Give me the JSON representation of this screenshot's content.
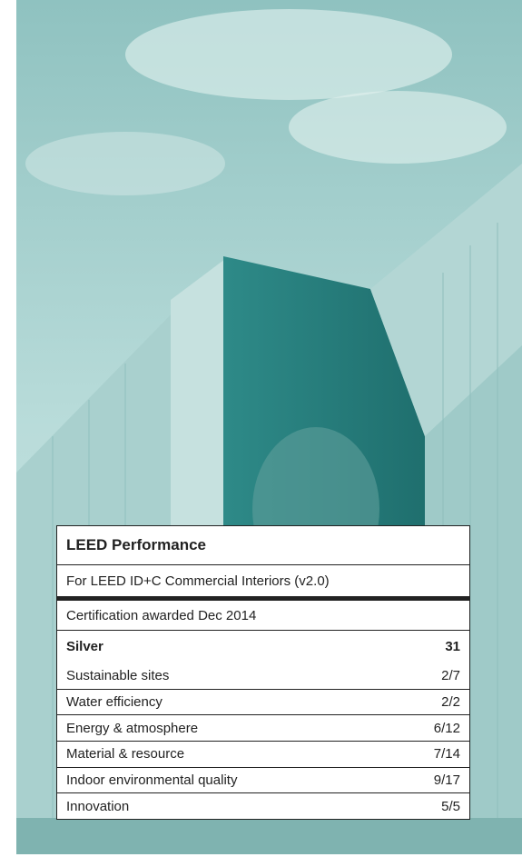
{
  "header": {
    "title": "LEED Performance",
    "subtitle": "For LEED ID+C Commercial Interiors (v2.0)"
  },
  "certification": "Certification awarded Dec 2014",
  "rating": {
    "label": "Silver",
    "points": 31
  },
  "categories": [
    {
      "name": "Sustainable sites",
      "score": "2/7"
    },
    {
      "name": "Water efficiency",
      "score": "2/2"
    },
    {
      "name": "Energy & atmosphere",
      "score": "6/12"
    },
    {
      "name": "Material & resource",
      "score": "7/14"
    },
    {
      "name": "Indoor environmental quality",
      "score": "9/17"
    },
    {
      "name": "Innovation",
      "score": "5/5"
    }
  ]
}
